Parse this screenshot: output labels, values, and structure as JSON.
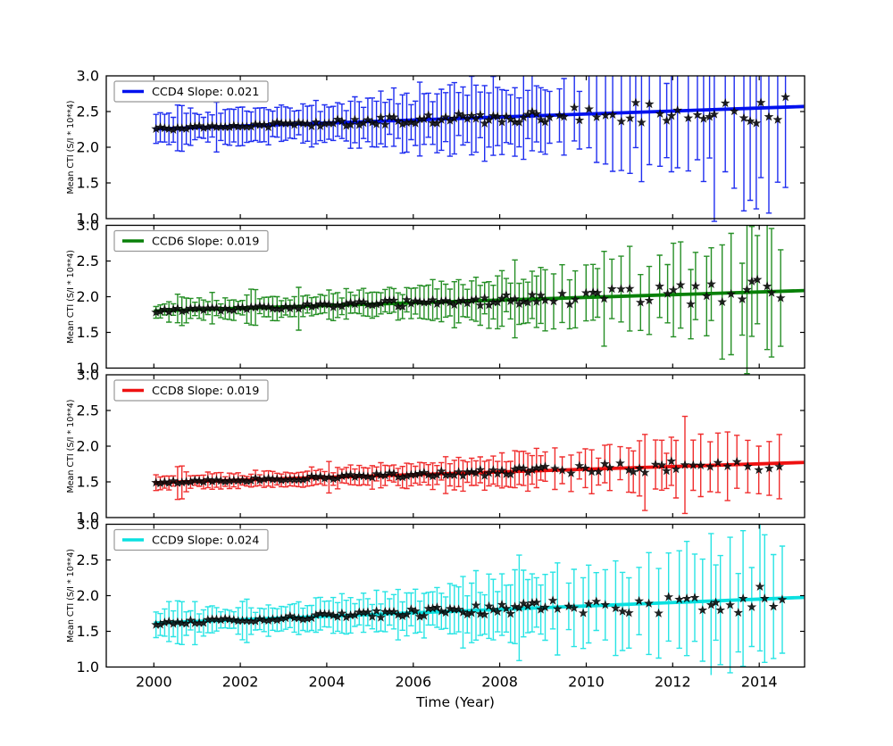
{
  "figure": {
    "background": "#ffffff",
    "title": ""
  },
  "chart_data": {
    "type": "errorbar",
    "title": "",
    "xlabel": "Time (Year)",
    "ylabel": "Mean CTI (S/I * 10**4)",
    "xlim": [
      1998.9,
      2015.05
    ],
    "ylim": [
      1.0,
      3.0
    ],
    "x_ticks": [
      2000,
      2002,
      2004,
      2006,
      2008,
      2010,
      2012,
      2014
    ],
    "y_ticks": [
      3.0,
      2.5,
      2.0,
      1.5,
      1.0
    ],
    "grid": false,
    "legend_position": "upper left",
    "marker": "black star",
    "panels": [
      {
        "ccd": "CCD4",
        "legend_label": "CCD4 Slope: 0.021",
        "slope_per_year": 0.021,
        "color": "#0011ee",
        "marker_color": "#111111",
        "fit_line": {
          "x0": 2000.0,
          "y0": 2.255,
          "x1": 2015.05,
          "y1": 2.571
        },
        "anchor_points": [
          [
            2000.1,
            2.25,
            0.2
          ],
          [
            2002.0,
            2.29,
            0.22
          ],
          [
            2004.0,
            2.33,
            0.22
          ],
          [
            2006.0,
            2.37,
            0.25
          ],
          [
            2008.0,
            2.42,
            0.3
          ],
          [
            2010.0,
            2.46,
            0.4
          ],
          [
            2012.0,
            2.5,
            0.55
          ],
          [
            2013.0,
            2.45,
            0.9
          ],
          [
            2014.0,
            2.5,
            1.0
          ],
          [
            2014.6,
            2.55,
            0.8
          ]
        ],
        "points_spec": {
          "t0": 2000.05,
          "t1": 2014.65,
          "step": 0.1,
          "intercept": 2.255,
          "noise0": 0.03,
          "noise_growth": 7,
          "err0": 0.2,
          "err_growth": 4.2,
          "seed": 11,
          "outliers": [
            [
              2000.6,
              0.32
            ],
            [
              2006.9,
              0.5
            ],
            [
              2007.35,
              0.55
            ],
            [
              2009.0,
              0.45
            ],
            [
              2012.95,
              1.5
            ],
            [
              2013.35,
              1.15
            ],
            [
              2013.6,
              1.3
            ],
            [
              2013.95,
              1.2
            ],
            [
              2014.25,
              1.35
            ],
            [
              2014.5,
              1.1
            ]
          ]
        }
      },
      {
        "ccd": "CCD6",
        "legend_label": "CCD6 Slope: 0.019",
        "slope_per_year": 0.019,
        "color": "#088008",
        "marker_color": "#111111",
        "fit_line": {
          "x0": 2000.0,
          "y0": 1.8,
          "x1": 2015.05,
          "y1": 2.086
        },
        "anchor_points": [
          [
            2000.1,
            1.8,
            0.1
          ],
          [
            2002.0,
            1.84,
            0.12
          ],
          [
            2004.0,
            1.88,
            0.12
          ],
          [
            2006.0,
            1.91,
            0.14
          ],
          [
            2008.0,
            1.95,
            0.18
          ],
          [
            2010.0,
            1.99,
            0.3
          ],
          [
            2012.0,
            2.02,
            0.5
          ],
          [
            2013.0,
            2.0,
            0.7
          ],
          [
            2014.0,
            2.05,
            0.8
          ],
          [
            2014.6,
            2.08,
            0.6
          ]
        ],
        "points_spec": {
          "t0": 2000.05,
          "t1": 2014.65,
          "step": 0.1,
          "intercept": 1.8,
          "noise0": 0.025,
          "noise_growth": 7,
          "err0": 0.11,
          "err_growth": 6,
          "seed": 23,
          "outliers": [
            [
              2000.6,
              0.2
            ],
            [
              2001.35,
              0.22
            ],
            [
              2002.3,
              0.25
            ],
            [
              2003.35,
              0.3
            ],
            [
              2012.6,
              0.95
            ],
            [
              2013.3,
              0.85
            ],
            [
              2013.9,
              0.95
            ],
            [
              2014.3,
              0.9
            ]
          ]
        }
      },
      {
        "ccd": "CCD8",
        "legend_label": "CCD8 Slope: 0.019",
        "slope_per_year": 0.019,
        "color": "#ee1111",
        "marker_color": "#111111",
        "fit_line": {
          "x0": 2000.0,
          "y0": 1.487,
          "x1": 2015.05,
          "y1": 1.773
        },
        "anchor_points": [
          [
            2000.1,
            1.49,
            0.08
          ],
          [
            2002.0,
            1.52,
            0.09
          ],
          [
            2004.0,
            1.56,
            0.09
          ],
          [
            2006.0,
            1.6,
            0.1
          ],
          [
            2008.0,
            1.64,
            0.12
          ],
          [
            2010.0,
            1.68,
            0.18
          ],
          [
            2012.0,
            1.71,
            0.28
          ],
          [
            2013.0,
            1.7,
            0.4
          ],
          [
            2014.0,
            1.74,
            0.45
          ],
          [
            2014.6,
            1.77,
            0.4
          ]
        ],
        "points_spec": {
          "t0": 2000.05,
          "t1": 2014.65,
          "step": 0.1,
          "intercept": 1.487,
          "noise0": 0.018,
          "noise_growth": 6,
          "err0": 0.085,
          "err_growth": 4.5,
          "seed": 37,
          "outliers": [
            [
              2000.6,
              0.23
            ],
            [
              2012.3,
              0.68
            ],
            [
              2013.3,
              0.48
            ],
            [
              2013.85,
              0.55
            ],
            [
              2014.3,
              0.55
            ],
            [
              2014.5,
              0.45
            ]
          ]
        }
      },
      {
        "ccd": "CCD9",
        "legend_label": "CCD9 Slope: 0.024",
        "slope_per_year": 0.024,
        "color": "#0ae0e0",
        "marker_color": "#111111",
        "fit_line": {
          "x0": 2000.0,
          "y0": 1.615,
          "x1": 2015.05,
          "y1": 1.976
        },
        "anchor_points": [
          [
            2000.1,
            1.62,
            0.15
          ],
          [
            2002.0,
            1.66,
            0.15
          ],
          [
            2004.0,
            1.71,
            0.16
          ],
          [
            2006.0,
            1.76,
            0.18
          ],
          [
            2008.0,
            1.81,
            0.22
          ],
          [
            2010.0,
            1.85,
            0.35
          ],
          [
            2012.0,
            1.9,
            0.55
          ],
          [
            2013.0,
            1.88,
            0.8
          ],
          [
            2014.0,
            1.95,
            0.85
          ],
          [
            2014.6,
            1.97,
            0.7
          ]
        ],
        "points_spec": {
          "t0": 2000.05,
          "t1": 2014.65,
          "step": 0.1,
          "intercept": 1.615,
          "noise0": 0.028,
          "noise_growth": 7,
          "err0": 0.15,
          "err_growth": 5,
          "seed": 53,
          "outliers": [
            [
              2000.6,
              0.3
            ],
            [
              2012.35,
              0.8
            ],
            [
              2012.9,
              1.0
            ],
            [
              2013.6,
              0.95
            ],
            [
              2014.05,
              0.9
            ],
            [
              2014.5,
              0.75
            ]
          ]
        }
      }
    ]
  }
}
